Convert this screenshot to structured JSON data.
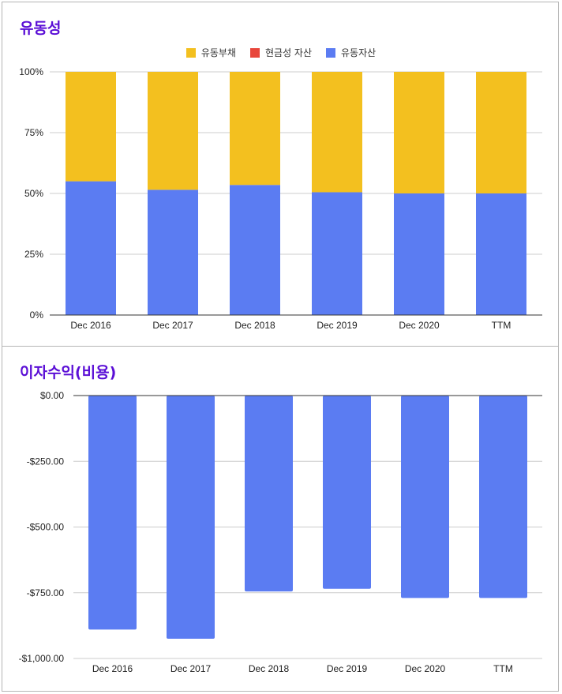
{
  "chart_data": [
    {
      "type": "bar",
      "stacked": true,
      "title": "유동성",
      "categories": [
        "Dec 2016",
        "Dec 2017",
        "Dec 2018",
        "Dec 2019",
        "Dec 2020",
        "TTM"
      ],
      "series": [
        {
          "name": "유동부채",
          "color": "#f3c01f",
          "values": [
            45,
            48.5,
            46.5,
            49.5,
            50,
            50
          ]
        },
        {
          "name": "현금성 자산",
          "color": "#e8463b",
          "values": [
            0,
            0,
            0,
            0,
            0,
            0
          ]
        },
        {
          "name": "유동자산",
          "color": "#5b7cf2",
          "values": [
            55,
            51.5,
            53.5,
            50.5,
            50,
            50
          ]
        }
      ],
      "yticks": [
        "0%",
        "25%",
        "50%",
        "75%",
        "100%"
      ],
      "ylim": [
        0,
        100
      ],
      "legend": "top-center",
      "grid": true
    },
    {
      "type": "bar",
      "title": "이자수익(비용)",
      "categories": [
        "Dec 2016",
        "Dec 2017",
        "Dec 2018",
        "Dec 2019",
        "Dec 2020",
        "TTM"
      ],
      "series": [
        {
          "name": "이자수익(비용)",
          "color": "#5b7cf2",
          "values": [
            -890,
            -925,
            -745,
            -735,
            -770,
            -770
          ]
        }
      ],
      "yticks": [
        "$0.00",
        "-$250.00",
        "-$500.00",
        "-$750.00",
        "-$1,000.00"
      ],
      "ylim": [
        -1000,
        0
      ],
      "grid": true
    }
  ]
}
